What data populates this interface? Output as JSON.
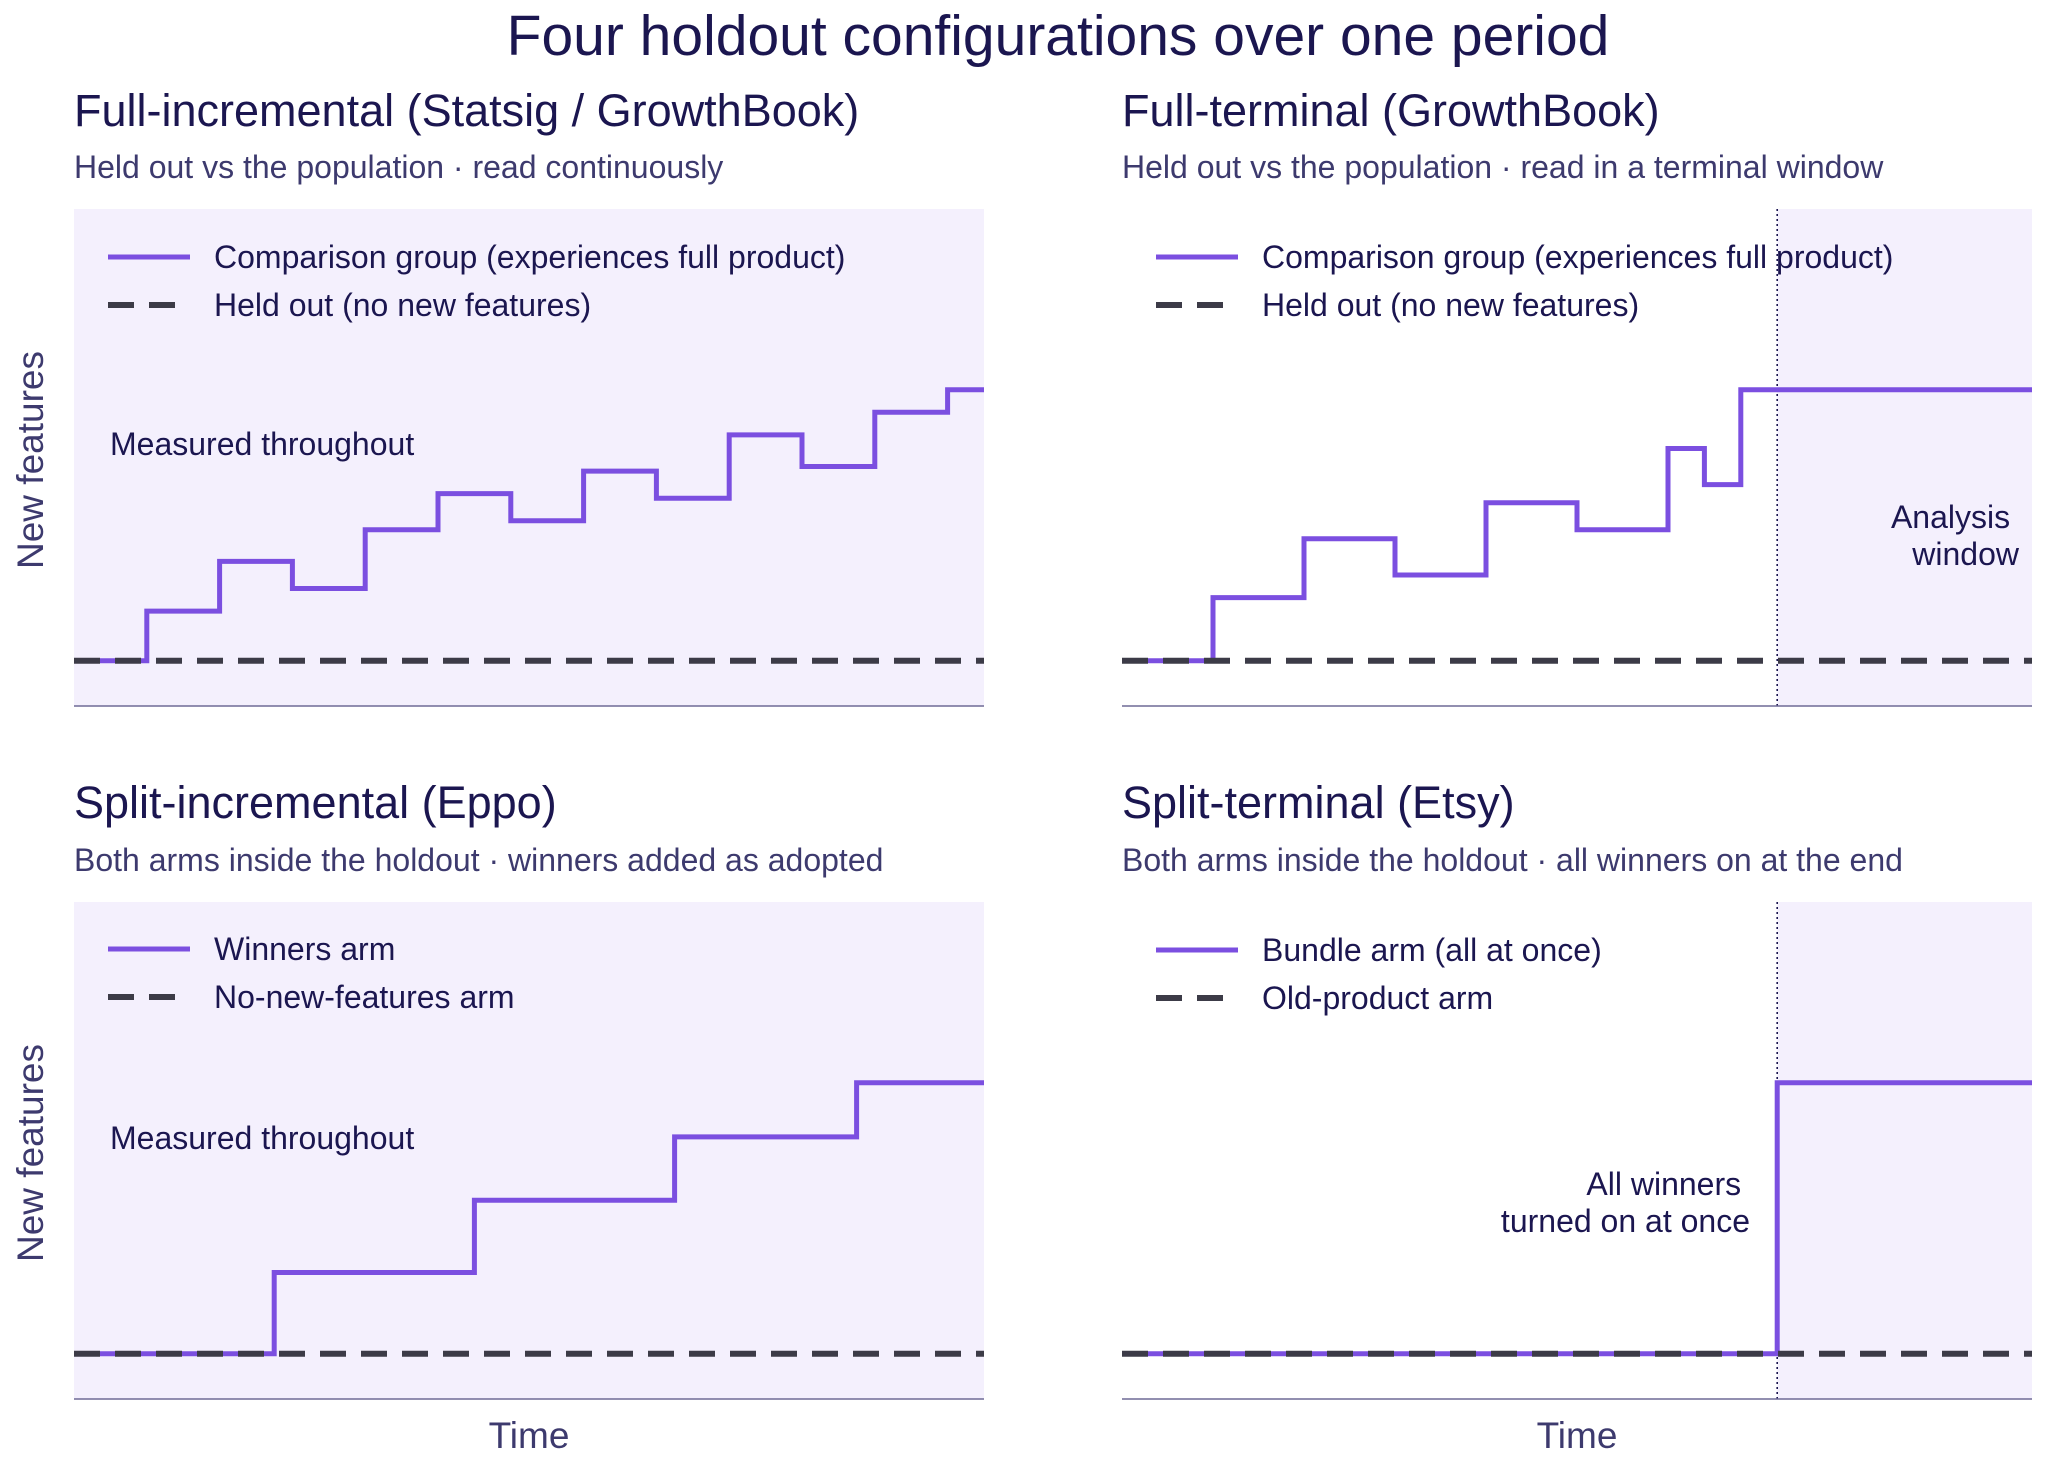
{
  "title": "Four holdout configurations over one period",
  "colors": {
    "treatment": "#7b4fe0",
    "control": "#3c3b47",
    "panel_bg": "#f4f0fd",
    "window_bg": "#f4f0fd",
    "text": "#1b1650",
    "subtext": "#3d3a6e",
    "axis": "#6e6a96"
  },
  "chart_data": [
    {
      "type": "line",
      "step": true,
      "title": "Full-incremental (Statsig / GrowthBook)",
      "subtitle": "Held out vs the population · read continuously",
      "xlabel": "",
      "ylabel": "New features",
      "xlim": [
        0,
        1
      ],
      "ylim": [
        -0.1,
        1
      ],
      "shading": "full",
      "legend": "top-left",
      "annotation": "Measured throughout",
      "series": [
        {
          "name": "Comparison group (experiences full product)",
          "style": "solid",
          "x": [
            0,
            0.08,
            0.08,
            0.16,
            0.16,
            0.24,
            0.24,
            0.32,
            0.32,
            0.4,
            0.4,
            0.48,
            0.48,
            0.56,
            0.56,
            0.64,
            0.64,
            0.72,
            0.72,
            0.8,
            0.8,
            0.88,
            0.88,
            0.96,
            0.96,
            1.0
          ],
          "y": [
            0,
            0,
            0.11,
            0.11,
            0.22,
            0.22,
            0.16,
            0.16,
            0.29,
            0.29,
            0.37,
            0.37,
            0.31,
            0.31,
            0.42,
            0.42,
            0.36,
            0.36,
            0.5,
            0.5,
            0.43,
            0.43,
            0.55,
            0.55,
            0.6,
            0.6
          ]
        },
        {
          "name": "Held out (no new features)",
          "style": "dashed",
          "x": [
            0,
            1.0
          ],
          "y": [
            0,
            0
          ]
        }
      ]
    },
    {
      "type": "line",
      "step": true,
      "title": "Full-terminal (GrowthBook)",
      "subtitle": "Held out vs the population · read in a terminal window",
      "xlabel": "",
      "ylabel": "",
      "xlim": [
        0,
        1
      ],
      "ylim": [
        -0.1,
        1
      ],
      "shading": "window",
      "window_start": 0.72,
      "legend": "top-left",
      "annotation": "Analysis\nwindow",
      "series": [
        {
          "name": "Comparison group (experiences full product)",
          "style": "solid",
          "x": [
            0,
            0.1,
            0.1,
            0.2,
            0.2,
            0.3,
            0.3,
            0.4,
            0.4,
            0.5,
            0.5,
            0.6,
            0.6,
            0.64,
            0.64,
            0.68,
            0.68,
            1.0
          ],
          "y": [
            0,
            0,
            0.14,
            0.14,
            0.27,
            0.27,
            0.19,
            0.19,
            0.35,
            0.35,
            0.29,
            0.29,
            0.47,
            0.47,
            0.39,
            0.39,
            0.6,
            0.6
          ]
        },
        {
          "name": "Held out (no new features)",
          "style": "dashed",
          "x": [
            0,
            1.0
          ],
          "y": [
            0,
            0
          ]
        }
      ]
    },
    {
      "type": "line",
      "step": true,
      "title": "Split-incremental (Eppo)",
      "subtitle": "Both arms inside the holdout · winners added as adopted",
      "xlabel": "Time",
      "ylabel": "New features",
      "xlim": [
        0,
        1
      ],
      "ylim": [
        -0.1,
        1
      ],
      "shading": "full",
      "legend": "top-left",
      "annotation": "Measured throughout",
      "series": [
        {
          "name": "Winners arm",
          "style": "solid",
          "x": [
            0,
            0.22,
            0.22,
            0.44,
            0.44,
            0.66,
            0.66,
            0.86,
            0.86,
            1.0
          ],
          "y": [
            0,
            0,
            0.18,
            0.18,
            0.34,
            0.34,
            0.48,
            0.48,
            0.6,
            0.6
          ]
        },
        {
          "name": "No-new-features arm",
          "style": "dashed",
          "x": [
            0,
            1.0
          ],
          "y": [
            0,
            0
          ]
        }
      ]
    },
    {
      "type": "line",
      "step": true,
      "title": "Split-terminal (Etsy)",
      "subtitle": "Both arms inside the holdout · all winners on at the end",
      "xlabel": "Time",
      "ylabel": "",
      "xlim": [
        0,
        1
      ],
      "ylim": [
        -0.1,
        1
      ],
      "shading": "window",
      "window_start": 0.72,
      "legend": "top-left",
      "annotation": "All winners\nturned on at once",
      "series": [
        {
          "name": "Bundle arm (all at once)",
          "style": "solid",
          "x": [
            0,
            0.72,
            0.72,
            1.0
          ],
          "y": [
            0,
            0,
            0.6,
            0.6
          ]
        },
        {
          "name": "Old-product arm",
          "style": "dashed",
          "x": [
            0,
            1.0
          ],
          "y": [
            0,
            0
          ]
        }
      ]
    }
  ]
}
